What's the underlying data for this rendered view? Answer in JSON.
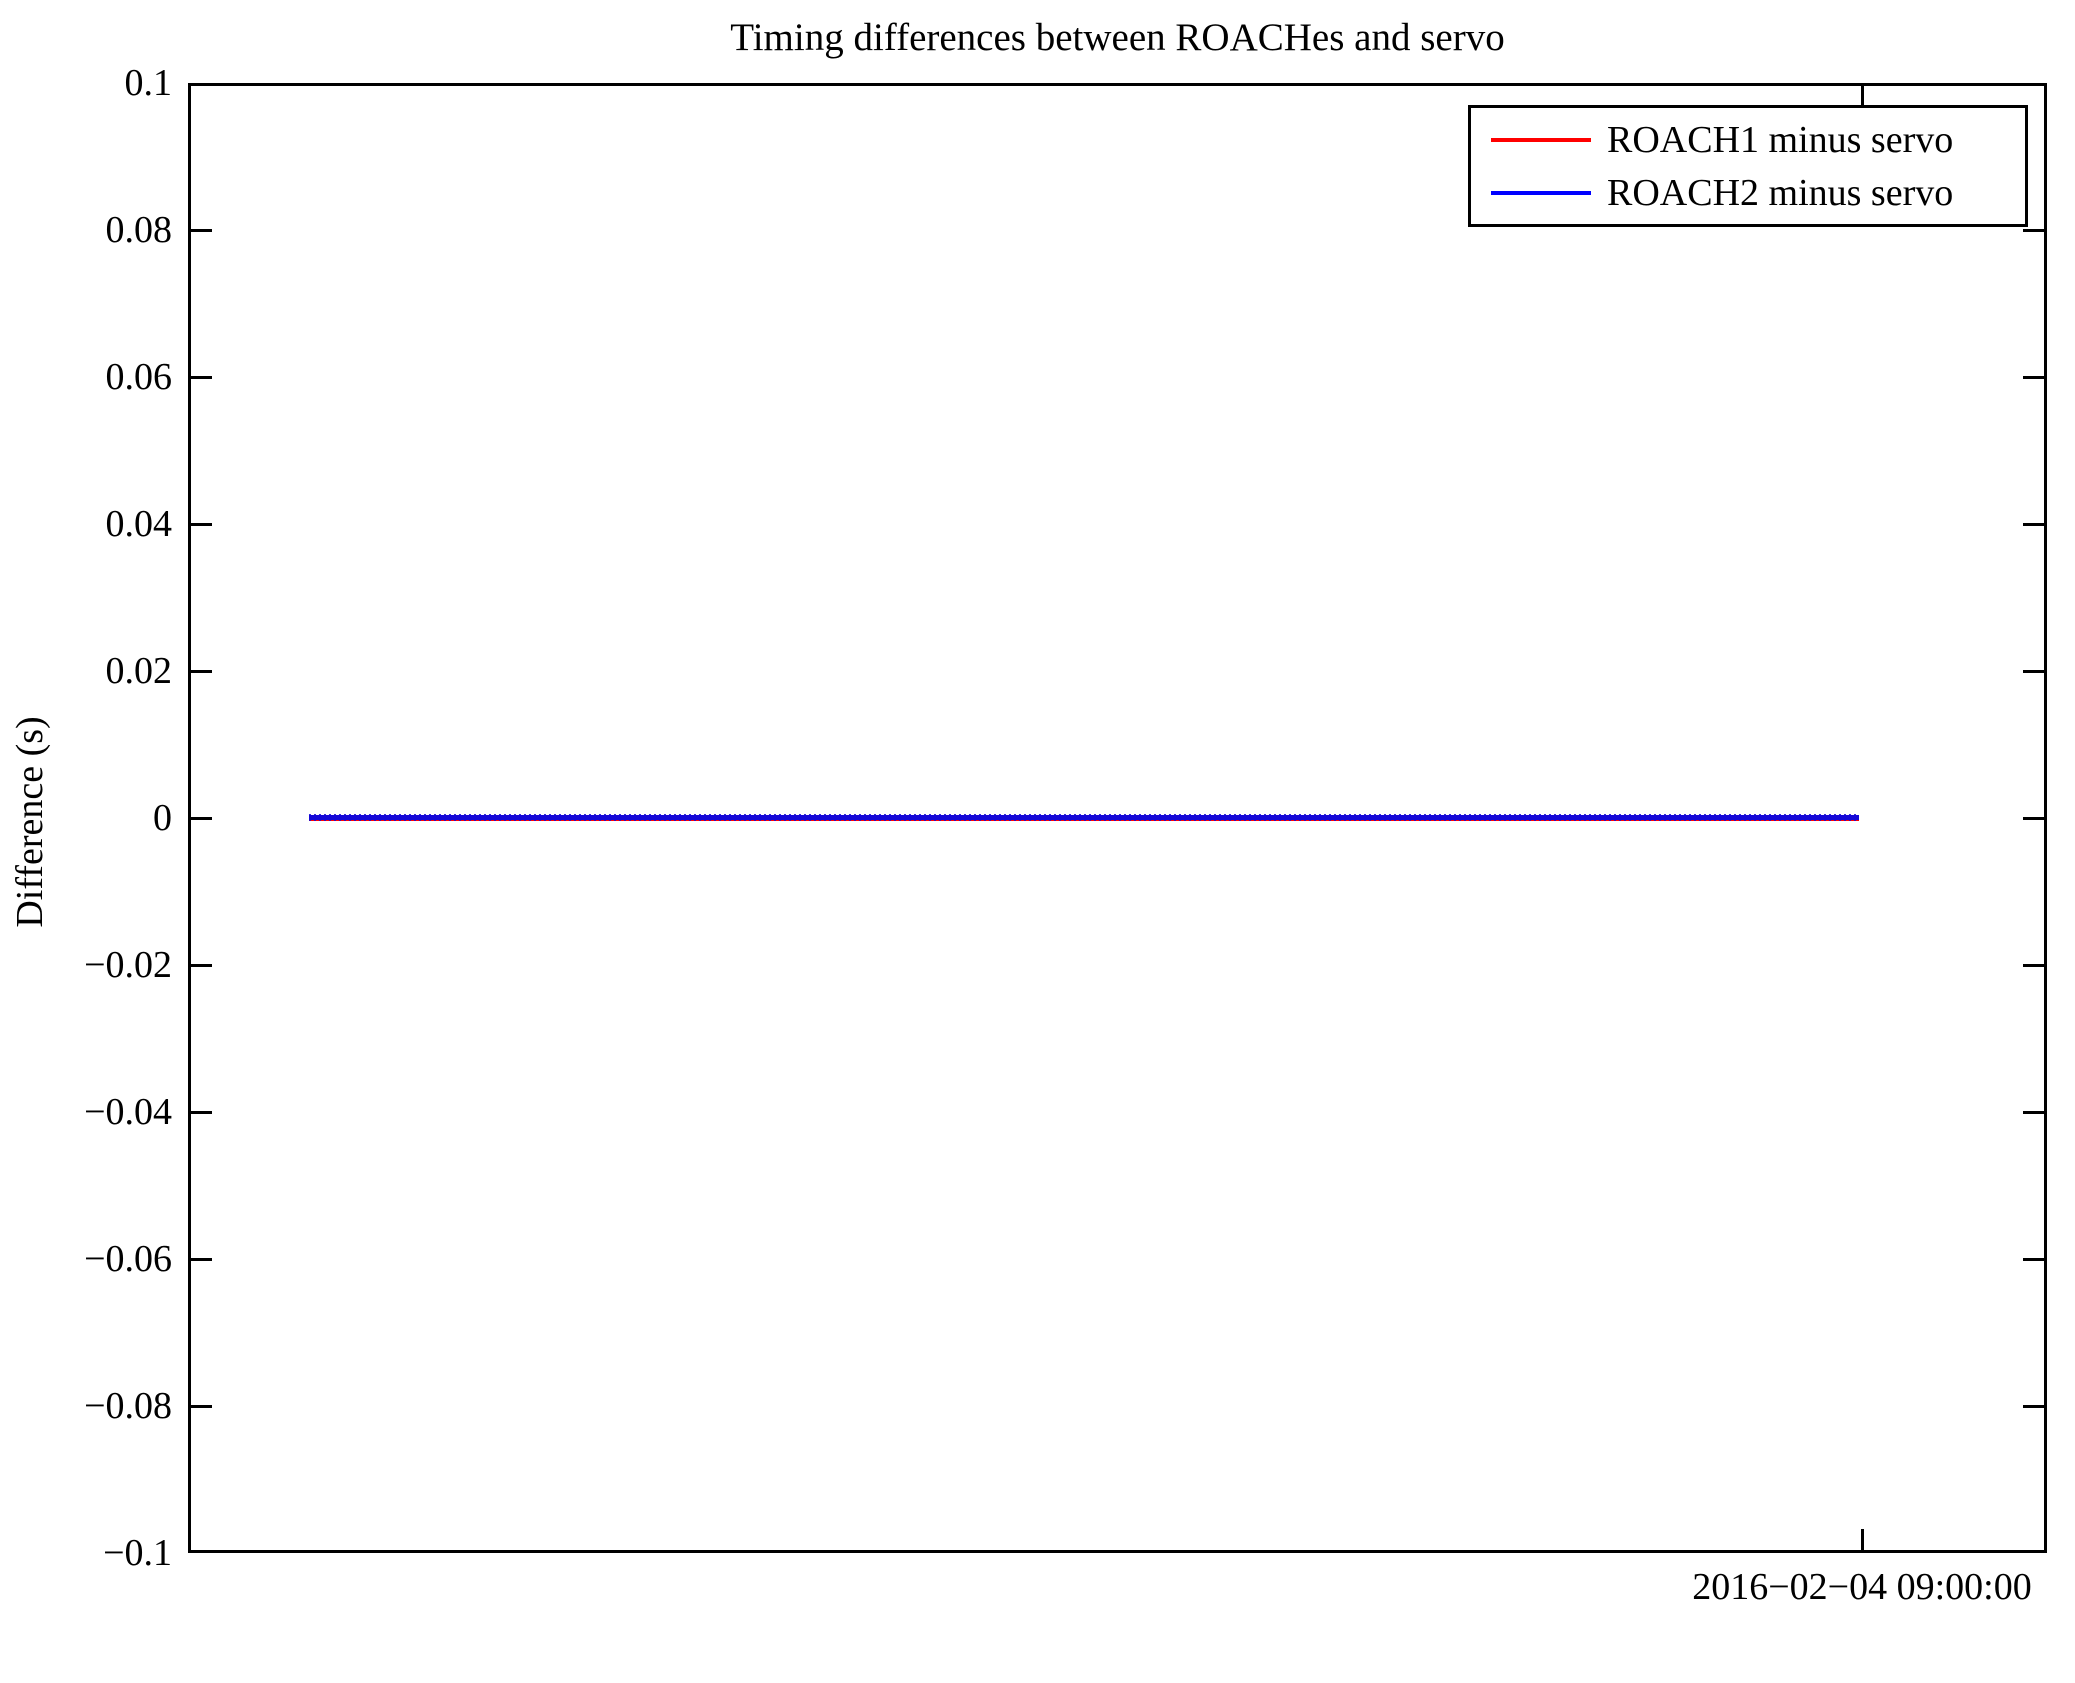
{
  "title": "Timing differences between ROACHes and servo",
  "axes": {
    "ylabel": "Difference (s)",
    "y_tick_labels": [
      "0.1",
      "0.08",
      "0.06",
      "0.04",
      "0.02",
      "0",
      "−0.02",
      "−0.04",
      "−0.06",
      "−0.08",
      "−0.1"
    ],
    "x_tick_label": "2016−02−04 09:00:00"
  },
  "legend": {
    "entries": [
      {
        "label": "ROACH1 minus servo",
        "color": "#ff0000"
      },
      {
        "label": "ROACH2 minus servo",
        "color": "#0000ff"
      }
    ]
  },
  "colors": {
    "background": "#ffffff",
    "axis": "#000000",
    "roach1_line": "#ff0000",
    "roach2_line": "#0000ff"
  },
  "chart_data": {
    "type": "line",
    "title": "Timing differences between ROACHes and servo",
    "xlabel": "",
    "ylabel": "Difference (s)",
    "ylim": [
      -0.1,
      0.1
    ],
    "y_tick_values": [
      0.1,
      0.08,
      0.06,
      0.04,
      0.02,
      0,
      -0.02,
      -0.04,
      -0.06,
      -0.08,
      -0.1
    ],
    "x_tick_labels": [
      "2016-02-04 09:00:00"
    ],
    "x_tick_position_fraction": 0.9,
    "grid": false,
    "legend_position": "upper right",
    "box_ticks": "inward ticks on all four sides",
    "series": [
      {
        "name": "ROACH1 minus servo",
        "color": "#ff0000",
        "approx_constant_value": 0.0,
        "note": "flat line at ~0 s, hidden beneath ROACH2 trace"
      },
      {
        "name": "ROACH2 minus servo",
        "color": "#0000ff",
        "approx_constant_value": 0.0,
        "note": "flat dense-marker line at ~0 s spanning the data range"
      }
    ],
    "data_span_fraction_of_x_axis": [
      0.065,
      0.9
    ]
  }
}
